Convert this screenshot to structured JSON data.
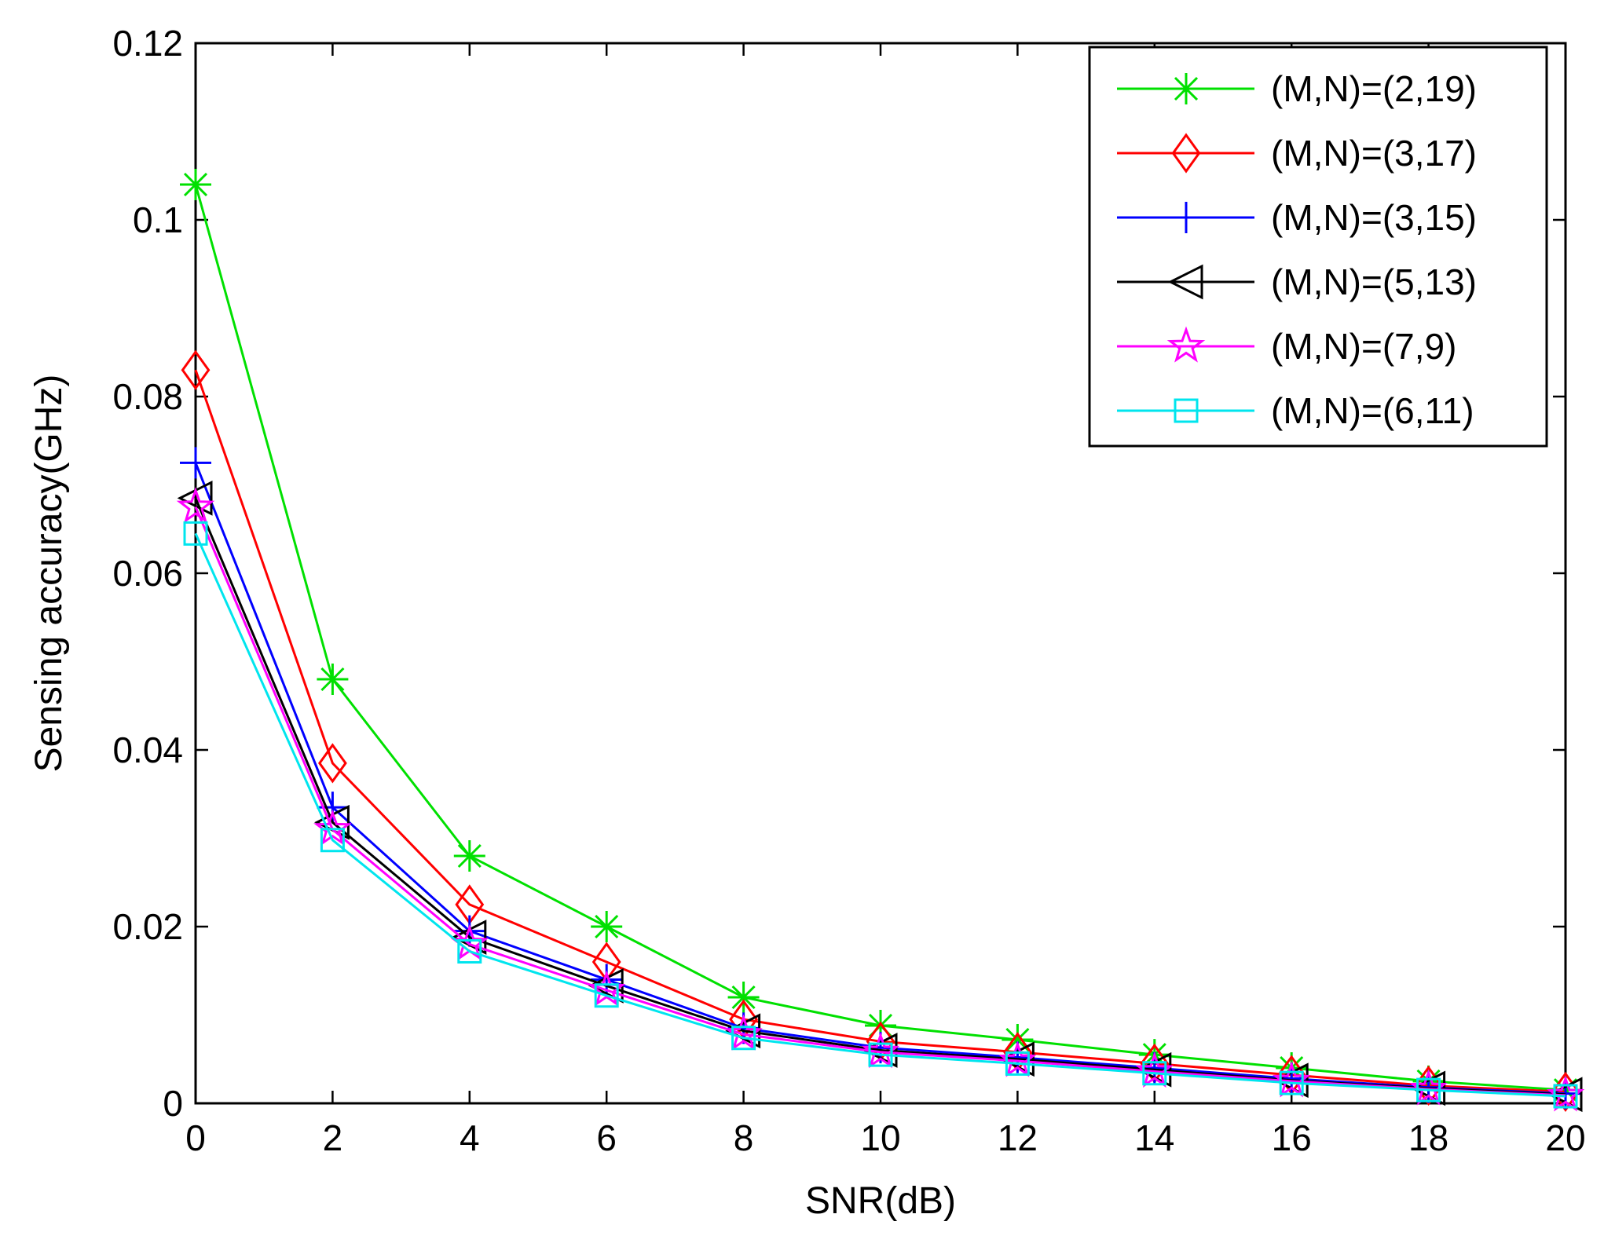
{
  "chart_data": {
    "type": "line",
    "title": "",
    "xlabel": "SNR(dB)",
    "ylabel": "Sensing accuracy(GHz)",
    "xlim": [
      0,
      20
    ],
    "ylim": [
      0,
      0.12
    ],
    "grid": false,
    "legend_position": "top-right",
    "x": [
      0,
      2,
      4,
      6,
      8,
      10,
      12,
      14,
      16,
      18,
      20
    ],
    "x_tick_labels": [
      "0",
      "2",
      "4",
      "6",
      "8",
      "10",
      "12",
      "14",
      "16",
      "18",
      "20"
    ],
    "y_ticks": [
      0,
      0.02,
      0.04,
      0.06,
      0.08,
      0.1,
      0.12
    ],
    "y_tick_labels": [
      "0",
      "0.02",
      "0.04",
      "0.06",
      "0.08",
      "0.1",
      "0.12"
    ],
    "series": [
      {
        "name": "(M,N)=(2,19)",
        "color": "#00e000",
        "marker": "asterisk",
        "values": [
          0.104,
          0.048,
          0.028,
          0.02,
          0.012,
          0.0088,
          0.0072,
          0.0055,
          0.004,
          0.0025,
          0.0015
        ]
      },
      {
        "name": "(M,N)=(3,17)",
        "color": "#ff0000",
        "marker": "diamond",
        "values": [
          0.083,
          0.0385,
          0.0225,
          0.016,
          0.0095,
          0.007,
          0.0058,
          0.0045,
          0.0032,
          0.002,
          0.0013
        ]
      },
      {
        "name": "(M,N)=(3,15)",
        "color": "#0000ff",
        "marker": "plus",
        "values": [
          0.0725,
          0.0335,
          0.0195,
          0.014,
          0.0085,
          0.0063,
          0.0052,
          0.004,
          0.0028,
          0.0018,
          0.0011
        ]
      },
      {
        "name": "(M,N)=(5,13)",
        "color": "#000000",
        "marker": "triangle-left",
        "values": [
          0.0685,
          0.0318,
          0.0188,
          0.0133,
          0.0082,
          0.006,
          0.005,
          0.0038,
          0.0026,
          0.0017,
          0.001
        ]
      },
      {
        "name": "(M,N)=(7,9)",
        "color": "#ff00ff",
        "marker": "pentagram",
        "values": [
          0.0675,
          0.031,
          0.018,
          0.0128,
          0.0078,
          0.0058,
          0.0048,
          0.0036,
          0.0025,
          0.0016,
          0.0009
        ]
      },
      {
        "name": "(M,N)=(6,11)",
        "color": "#00e5ee",
        "marker": "square",
        "values": [
          0.0645,
          0.0298,
          0.0172,
          0.0122,
          0.0074,
          0.0055,
          0.0045,
          0.0034,
          0.0023,
          0.0015,
          0.0008
        ]
      }
    ]
  }
}
